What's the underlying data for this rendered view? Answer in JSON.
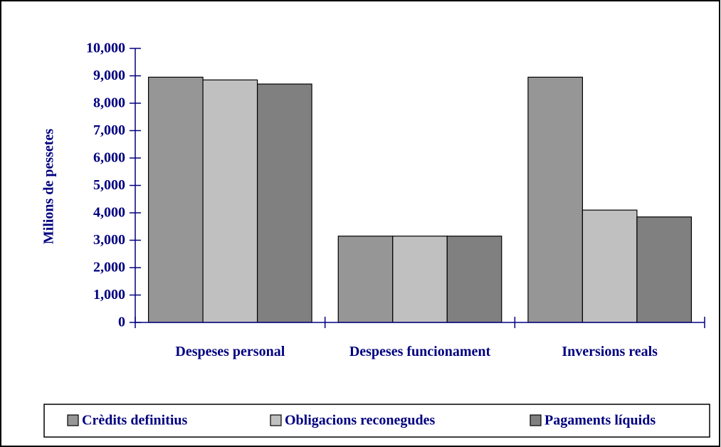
{
  "chart_data": {
    "type": "bar",
    "y_label": "Milions de pessetes",
    "categories": [
      "Despeses personal",
      "Despeses funcionament",
      "Inversions reals"
    ],
    "series": [
      {
        "name": "Crèdits definitius",
        "color": "#969696",
        "values": [
          8950,
          3150,
          8950
        ]
      },
      {
        "name": "Obligacions reconegudes",
        "color": "#c0c0c0",
        "values": [
          8850,
          3150,
          4100
        ]
      },
      {
        "name": "Pagaments líquids",
        "color": "#808080",
        "values": [
          8700,
          3150,
          3850
        ]
      }
    ],
    "ylim": [
      0,
      10000
    ],
    "yticks": [
      {
        "value": 0,
        "label": "0"
      },
      {
        "value": 1000,
        "label": "1,000"
      },
      {
        "value": 2000,
        "label": "2,000"
      },
      {
        "value": 3000,
        "label": "3,000"
      },
      {
        "value": 4000,
        "label": "4,000"
      },
      {
        "value": 5000,
        "label": "5,000"
      },
      {
        "value": 6000,
        "label": "6,000"
      },
      {
        "value": 7000,
        "label": "7,000"
      },
      {
        "value": 8000,
        "label": "8,000"
      },
      {
        "value": 9000,
        "label": "9,000"
      },
      {
        "value": 10000,
        "label": "10,000"
      }
    ],
    "legend": "bottom"
  }
}
